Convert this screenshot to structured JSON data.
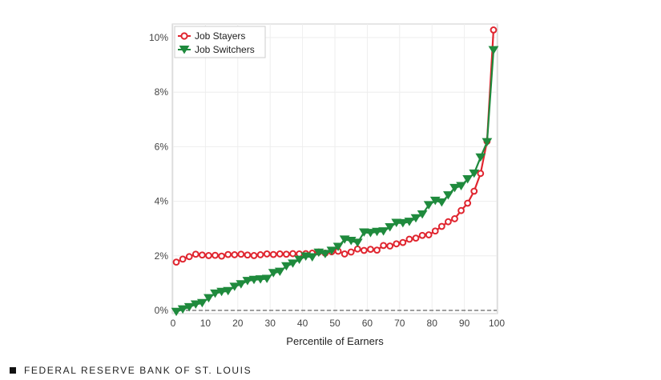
{
  "chart_data": {
    "type": "line",
    "title": "",
    "xlabel": "Percentile of Earners",
    "ylabel": "",
    "xlim": [
      0,
      100
    ],
    "ylim": [
      0,
      10.3
    ],
    "x_ticks": [
      0,
      10,
      20,
      30,
      40,
      50,
      60,
      70,
      80,
      90,
      100
    ],
    "x_tick_labels": [
      "0",
      "10",
      "20",
      "30",
      "40",
      "50",
      "60",
      "70",
      "80",
      "90",
      "100"
    ],
    "y_ticks": [
      0,
      2,
      4,
      6,
      8,
      10
    ],
    "y_tick_labels": [
      "0%",
      "2%",
      "4%",
      "6%",
      "8%",
      "10%"
    ],
    "grid": true,
    "legend_position": "top-left",
    "reference_line": {
      "y": 0,
      "style": "dashed"
    },
    "series": [
      {
        "name": "Job Stayers",
        "color": "#e0252f",
        "marker": "circle",
        "x": [
          1,
          3,
          5,
          7,
          9,
          11,
          13,
          15,
          17,
          19,
          21,
          23,
          25,
          27,
          29,
          31,
          33,
          35,
          37,
          39,
          41,
          43,
          45,
          47,
          49,
          51,
          53,
          55,
          57,
          59,
          61,
          63,
          65,
          67,
          69,
          71,
          73,
          75,
          77,
          79,
          81,
          83,
          85,
          87,
          89,
          91,
          93,
          95,
          97,
          99
        ],
        "y": [
          1.77,
          1.88,
          1.97,
          2.06,
          2.03,
          2.01,
          2.02,
          1.99,
          2.05,
          2.04,
          2.06,
          2.03,
          2.01,
          2.04,
          2.07,
          2.05,
          2.07,
          2.06,
          2.08,
          2.07,
          2.08,
          2.1,
          2.14,
          2.1,
          2.15,
          2.17,
          2.07,
          2.14,
          2.25,
          2.2,
          2.24,
          2.21,
          2.38,
          2.36,
          2.44,
          2.49,
          2.61,
          2.65,
          2.75,
          2.77,
          2.91,
          3.08,
          3.25,
          3.36,
          3.66,
          3.93,
          4.37,
          5.02,
          6.2,
          10.28
        ]
      },
      {
        "name": "Job Switchers",
        "color": "#1f8a3d",
        "marker": "triangle-down",
        "x": [
          1,
          3,
          5,
          7,
          9,
          11,
          13,
          15,
          17,
          19,
          21,
          23,
          25,
          27,
          29,
          31,
          33,
          35,
          37,
          39,
          41,
          43,
          45,
          47,
          49,
          51,
          53,
          55,
          57,
          59,
          61,
          63,
          65,
          67,
          69,
          71,
          73,
          75,
          77,
          79,
          81,
          83,
          85,
          87,
          89,
          91,
          93,
          95,
          97,
          99
        ],
        "y": [
          -0.05,
          0.04,
          0.12,
          0.22,
          0.27,
          0.45,
          0.62,
          0.68,
          0.71,
          0.87,
          0.96,
          1.08,
          1.12,
          1.14,
          1.16,
          1.37,
          1.42,
          1.62,
          1.72,
          1.86,
          1.98,
          1.95,
          2.12,
          2.07,
          2.19,
          2.33,
          2.6,
          2.55,
          2.48,
          2.86,
          2.84,
          2.88,
          2.9,
          3.05,
          3.21,
          3.2,
          3.25,
          3.38,
          3.52,
          3.86,
          4.02,
          3.96,
          4.22,
          4.49,
          4.56,
          4.81,
          5.02,
          5.61,
          6.17,
          9.54
        ]
      }
    ]
  },
  "footer": {
    "source_text": "FEDERAL RESERVE BANK OF ST. LOUIS"
  }
}
